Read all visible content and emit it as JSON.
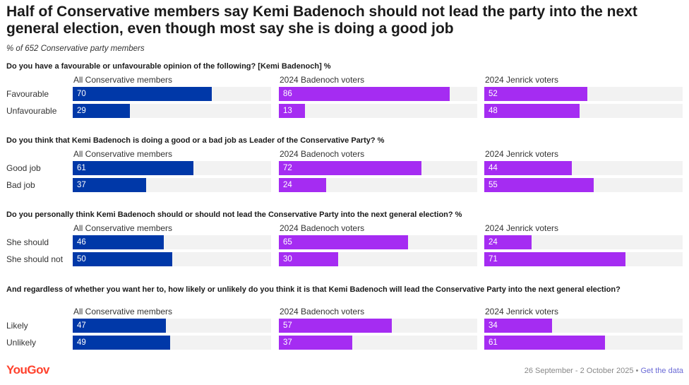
{
  "title": "Half of Conservative members say Kemi Badenoch should not lead the party into the next general election, even though most say she is doing a good job",
  "subtitle": "% of 652 Conservative party members",
  "footer": {
    "dates": "26 September - 2 October 2025",
    "separator": "•",
    "link": "Get the data"
  },
  "logo": "YouGov",
  "colors": {
    "all_members": "#0038a8",
    "badenoch_voters": "#a52cf2",
    "jenrick_voters": "#a52cf2",
    "track": "#f2f2f2",
    "logo": "#ff412c"
  },
  "chart_data": {
    "type": "bar",
    "orientation": "horizontal",
    "scale": [
      0,
      100
    ],
    "columns": [
      "All Conservative members",
      "2024 Badenoch voters",
      "2024 Jenrick voters"
    ],
    "panels": [
      {
        "question": "Do you have a favourable or unfavourable opinion of the following? [Kemi Badenoch] %",
        "categories": [
          "Favourable",
          "Unfavourable"
        ],
        "series": [
          {
            "name": "All Conservative members",
            "values": [
              70,
              29
            ]
          },
          {
            "name": "2024 Badenoch voters",
            "values": [
              86,
              13
            ]
          },
          {
            "name": "2024 Jenrick voters",
            "values": [
              52,
              48
            ]
          }
        ]
      },
      {
        "question": "Do you think that Kemi Badenoch is doing a good or a bad job as Leader of the Conservative Party? %",
        "categories": [
          "Good job",
          "Bad job"
        ],
        "series": [
          {
            "name": "All Conservative members",
            "values": [
              61,
              37
            ]
          },
          {
            "name": "2024 Badenoch voters",
            "values": [
              72,
              24
            ]
          },
          {
            "name": "2024 Jenrick voters",
            "values": [
              44,
              55
            ]
          }
        ]
      },
      {
        "question": "Do you personally think Kemi Badenoch should or should not lead the Conservative Party into the next general election? %",
        "categories": [
          "She should",
          "She should not"
        ],
        "series": [
          {
            "name": "All Conservative members",
            "values": [
              46,
              50
            ]
          },
          {
            "name": "2024 Badenoch voters",
            "values": [
              65,
              30
            ]
          },
          {
            "name": "2024 Jenrick voters",
            "values": [
              24,
              71
            ]
          }
        ]
      },
      {
        "question": "And regardless of whether you want her to, how likely or unlikely do you think it is that Kemi Badenoch will lead the Conservative Party into the next general election?",
        "categories": [
          "Likely",
          "Unlikely"
        ],
        "series": [
          {
            "name": "All Conservative members",
            "values": [
              47,
              49
            ]
          },
          {
            "name": "2024 Badenoch voters",
            "values": [
              57,
              37
            ]
          },
          {
            "name": "2024 Jenrick voters",
            "values": [
              34,
              61
            ]
          }
        ]
      }
    ]
  }
}
